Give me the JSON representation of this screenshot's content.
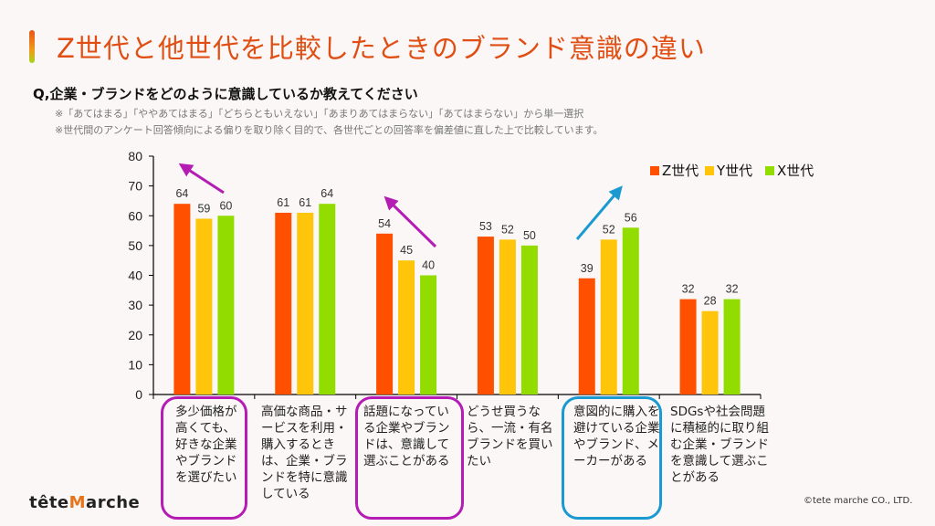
{
  "header": {
    "title": "Z世代と他世代を比較したときのブランド意識の違い",
    "question": "Q,企業・ブランドをどのように意識しているか教えてください",
    "note1": "※「あてはまる」「ややあてはまる」「どちらともいえない」「あまりあてはまらない」「あてはまらない」から単一選択",
    "note2": "※世代間のアンケート回答傾向による偏りを取り除く目的で、各世代ごとの回答率を偏差値に直した上で比較しています。"
  },
  "chart_data": {
    "type": "bar",
    "title": "",
    "xlabel": "",
    "ylabel": "",
    "ylim": [
      0,
      80
    ],
    "yticks": [
      "0",
      "10",
      "20",
      "30",
      "40",
      "50",
      "60",
      "70",
      "80"
    ],
    "legend_position": "top-right",
    "categories": [
      "多少価格が高くても、好きな企業やブランドを選びたい",
      "高価な商品・サービスを利用・購入するときは、企業・ブランドを特に意識している",
      "話題になっている企業やブランドは、意識して選ぶことがある",
      "どうせ買うなら、一流・有名ブランドを買いたい",
      "意図的に購入を避けている企業やブランド、メーカーがある",
      "SDGsや社会問題に積極的に取り組む企業・ブランドを意識して選ぶことがある"
    ],
    "series": [
      {
        "name": "Z世代",
        "color": "#ff5000",
        "values": [
          64,
          61,
          54,
          53,
          39,
          32
        ]
      },
      {
        "name": "Y世代",
        "color": "#ffc50a",
        "values": [
          59,
          61,
          45,
          52,
          52,
          28
        ]
      },
      {
        "name": "X世代",
        "color": "#92dc00",
        "values": [
          60,
          64,
          40,
          50,
          56,
          32
        ]
      }
    ],
    "annotations": [
      {
        "category_index": 0,
        "trend": "Z世代が高い",
        "color": "#b41cb4"
      },
      {
        "category_index": 2,
        "trend": "Z世代が高い",
        "color": "#b41cb4"
      },
      {
        "category_index": 4,
        "trend": "Z世代が低い",
        "color": "#1a9ad0"
      }
    ]
  },
  "footer": {
    "logo_pre": "tête",
    "logo_mark": "M",
    "logo_post": "arche",
    "copyright": "©tete marche CO., LTD."
  }
}
